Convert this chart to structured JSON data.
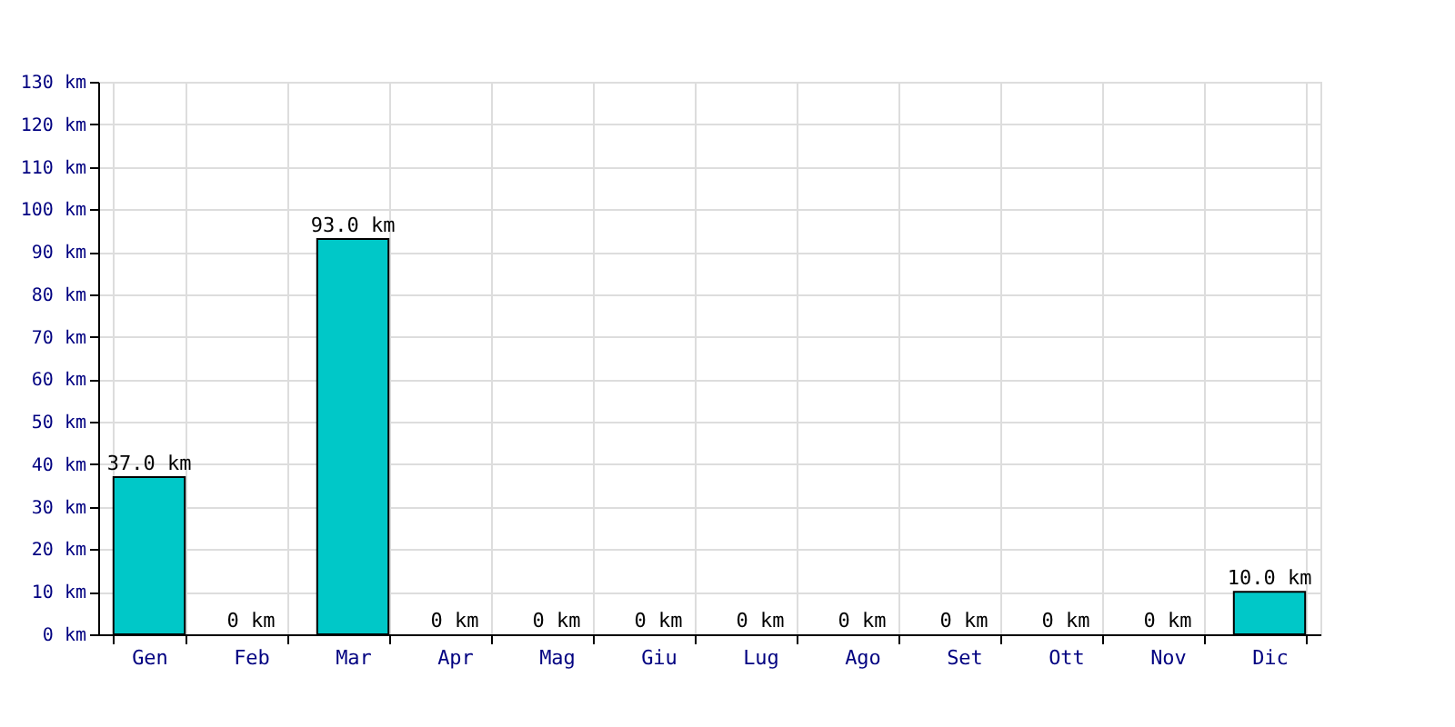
{
  "chart_data": {
    "type": "bar",
    "categories": [
      "Gen",
      "Feb",
      "Mar",
      "Apr",
      "Mag",
      "Giu",
      "Lug",
      "Ago",
      "Set",
      "Ott",
      "Nov",
      "Dic"
    ],
    "values": [
      37,
      0,
      93,
      0,
      0,
      0,
      0,
      0,
      0,
      0,
      0,
      10
    ],
    "value_labels": [
      "37.0 km",
      "0 km",
      "93.0 km",
      "0 km",
      "0 km",
      "0 km",
      "0 km",
      "0 km",
      "0 km",
      "0 km",
      "0 km",
      "10.0 km"
    ],
    "color": "#00c8c8",
    "ylim": [
      0,
      130
    ],
    "yticks": [
      {
        "value": 0,
        "label": "0 km"
      },
      {
        "value": 10,
        "label": "10 km"
      },
      {
        "value": 20,
        "label": "20 km"
      },
      {
        "value": 30,
        "label": "30 km"
      },
      {
        "value": 40,
        "label": "40 km"
      },
      {
        "value": 50,
        "label": "50 km"
      },
      {
        "value": 60,
        "label": "60 km"
      },
      {
        "value": 70,
        "label": "70 km"
      },
      {
        "value": 80,
        "label": "80 km"
      },
      {
        "value": 90,
        "label": "90 km"
      },
      {
        "value": 100,
        "label": "100 km"
      },
      {
        "value": 110,
        "label": "110 km"
      },
      {
        "value": 120,
        "label": "120 km"
      },
      {
        "value": 130,
        "label": "130 km"
      }
    ],
    "grid": true
  }
}
